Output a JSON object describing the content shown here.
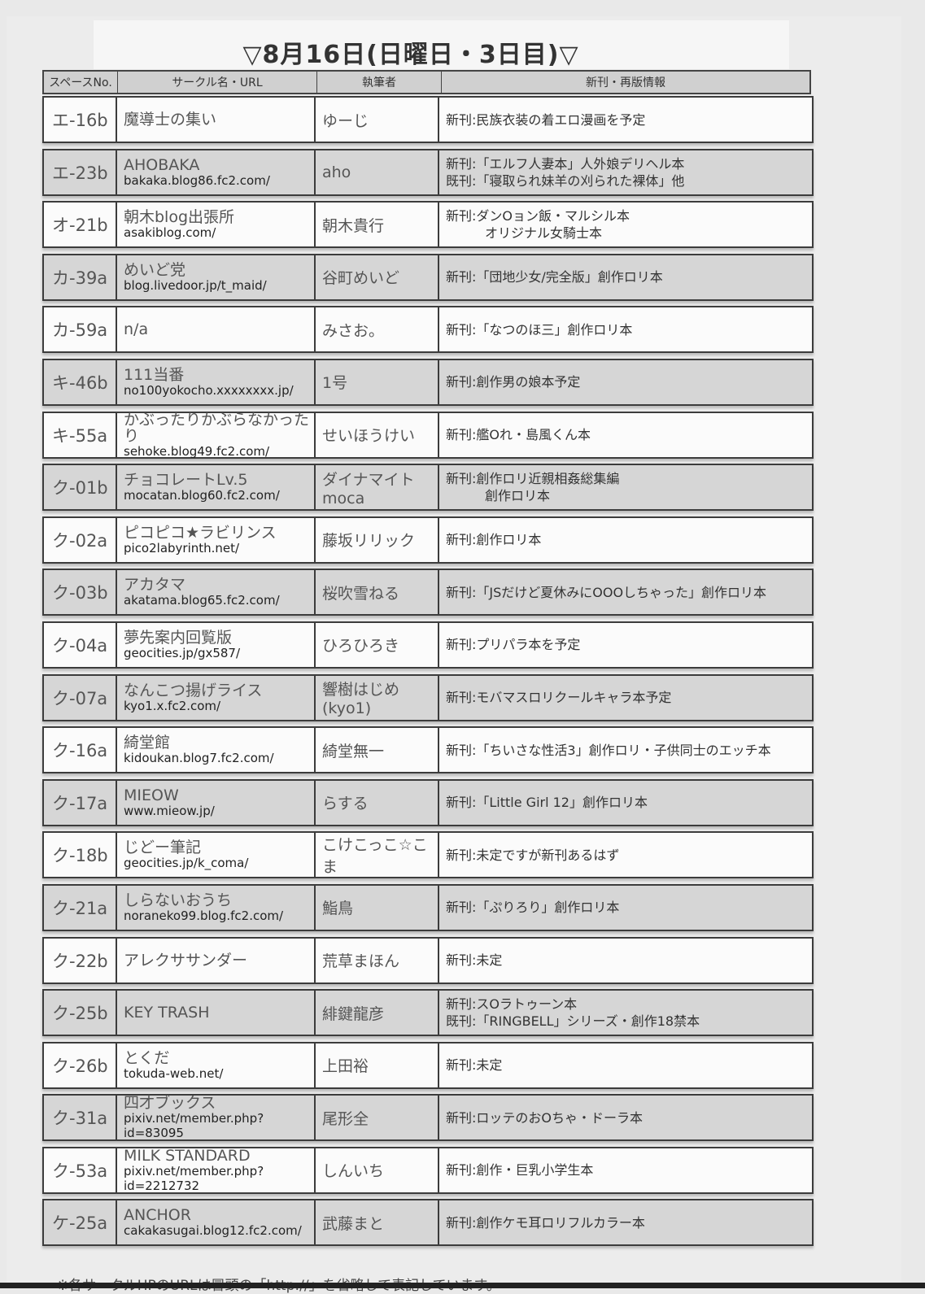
{
  "title": "▽8月16日(日曜日・3日目)▽",
  "headers": [
    "スペースNo.",
    "サークル名・URL",
    "執筆者",
    "新刊・再版情報"
  ],
  "rows": [
    {
      "space": "エ-16b",
      "name": "魔導士の集い",
      "url": "",
      "author": "ゆーじ",
      "info": [
        "新刊:民族衣装の着エロ漫画を予定"
      ]
    },
    {
      "space": "エ-23b",
      "name": "AHOBAKA",
      "url": "bakaka.blog86.fc2.com/",
      "author": "aho",
      "info": [
        "新刊:「エルフ人妻本」人外娘デリヘル本",
        "既刊:「寝取られ妹羊の刈られた裸体」他"
      ]
    },
    {
      "space": "オ-21b",
      "name": "朝木blog出張所",
      "url": "asakiblog.com/",
      "author": "朝木貴行",
      "info": [
        "新刊:ダンOョン飯・マルシル本",
        "　　　オリジナル女騎士本"
      ]
    },
    {
      "space": "カ-39a",
      "name": "めいど党",
      "url": "blog.livedoor.jp/t_maid/",
      "author": "谷町めいど",
      "info": [
        "新刊:「団地少女/完全版」創作ロリ本"
      ]
    },
    {
      "space": "カ-59a",
      "name": "n/a",
      "url": "",
      "author": "みさお。",
      "info": [
        "新刊:「なつのほ三」創作ロリ本"
      ]
    },
    {
      "space": "キ-46b",
      "name": "111当番",
      "url": "no100yokocho.xxxxxxxx.jp/",
      "author": "1号",
      "info": [
        "新刊:創作男の娘本予定"
      ]
    },
    {
      "space": "キ-55a",
      "name": "かぶったりかぶらなかったり",
      "url": "sehoke.blog49.fc2.com/",
      "author": "せいほうけい",
      "info": [
        "新刊:艦Oれ・島風くん本"
      ]
    },
    {
      "space": "ク-01b",
      "name": "チョコレートLv.5",
      "url": "mocatan.blog60.fc2.com/",
      "author": "ダイナマイトmoca",
      "info": [
        "新刊:創作ロリ近親相姦総集編",
        "　　　創作ロリ本"
      ]
    },
    {
      "space": "ク-02a",
      "name": "ピコピコ★ラビリンス",
      "url": "pico2labyrinth.net/",
      "author": "藤坂リリック",
      "info": [
        "新刊:創作ロリ本"
      ]
    },
    {
      "space": "ク-03b",
      "name": "アカタマ",
      "url": "akatama.blog65.fc2.com/",
      "author": "桜吹雪ねる",
      "info": [
        "新刊:「JSだけど夏休みにOOOしちゃった」創作ロリ本"
      ]
    },
    {
      "space": "ク-04a",
      "name": "夢先案内回覧版",
      "url": "geocities.jp/gx587/",
      "author": "ひろひろき",
      "info": [
        "新刊:プリパラ本を予定"
      ]
    },
    {
      "space": "ク-07a",
      "name": "なんこつ揚げライス",
      "url": "kyo1.x.fc2.com/",
      "author": "響樹はじめ (kyo1)",
      "info": [
        "新刊:モバマスロリクールキャラ本予定"
      ]
    },
    {
      "space": "ク-16a",
      "name": "綺堂館",
      "url": "kidoukan.blog7.fc2.com/",
      "author": "綺堂無一",
      "info": [
        "新刊:「ちいさな性活3」創作ロリ・子供同士のエッチ本"
      ]
    },
    {
      "space": "ク-17a",
      "name": "MIEOW",
      "url": "www.mieow.jp/",
      "author": "らする",
      "info": [
        "新刊:「Little Girl 12」創作ロリ本"
      ]
    },
    {
      "space": "ク-18b",
      "name": "じどー筆記",
      "url": "geocities.jp/k_coma/",
      "author": "こけこっこ☆こま",
      "info": [
        "新刊:未定ですが新刊あるはず"
      ]
    },
    {
      "space": "ク-21a",
      "name": "しらないおうち",
      "url": "noraneko99.blog.fc2.com/",
      "author": "鮨鳥",
      "info": [
        "新刊:「ぷりろり」創作ロリ本"
      ]
    },
    {
      "space": "ク-22b",
      "name": "アレクササンダー",
      "url": "",
      "author": "荒草まほん",
      "info": [
        "新刊:未定"
      ]
    },
    {
      "space": "ク-25b",
      "name": "KEY TRASH",
      "url": "",
      "author": "緋鍵龍彦",
      "info": [
        "新刊:スOラトゥーン本",
        "既刊:「RINGBELL」シリーズ・創作18禁本"
      ]
    },
    {
      "space": "ク-26b",
      "name": "とくだ",
      "url": "tokuda-web.net/",
      "author": "上田裕",
      "info": [
        "新刊:未定"
      ]
    },
    {
      "space": "ク-31a",
      "name": "四才ブックス",
      "url": "pixiv.net/member.php?id=83095",
      "author": "尾形全",
      "info": [
        "新刊:ロッテのおOちゃ・ドーラ本"
      ]
    },
    {
      "space": "ク-53a",
      "name": "MILK STANDARD",
      "url": "pixiv.net/member.php?id=2212732",
      "author": "しんいち",
      "info": [
        "新刊:創作・巨乳小学生本"
      ]
    },
    {
      "space": "ケ-25a",
      "name": "ANCHOR",
      "url": "cakakasugai.blog12.fc2.com/",
      "author": "武藤まと",
      "info": [
        "新刊:創作ケモ耳ロリフルカラー本"
      ]
    }
  ],
  "footnote": "※各サークルHPのURLは冒頭の「http://」を省略して表記しています。"
}
